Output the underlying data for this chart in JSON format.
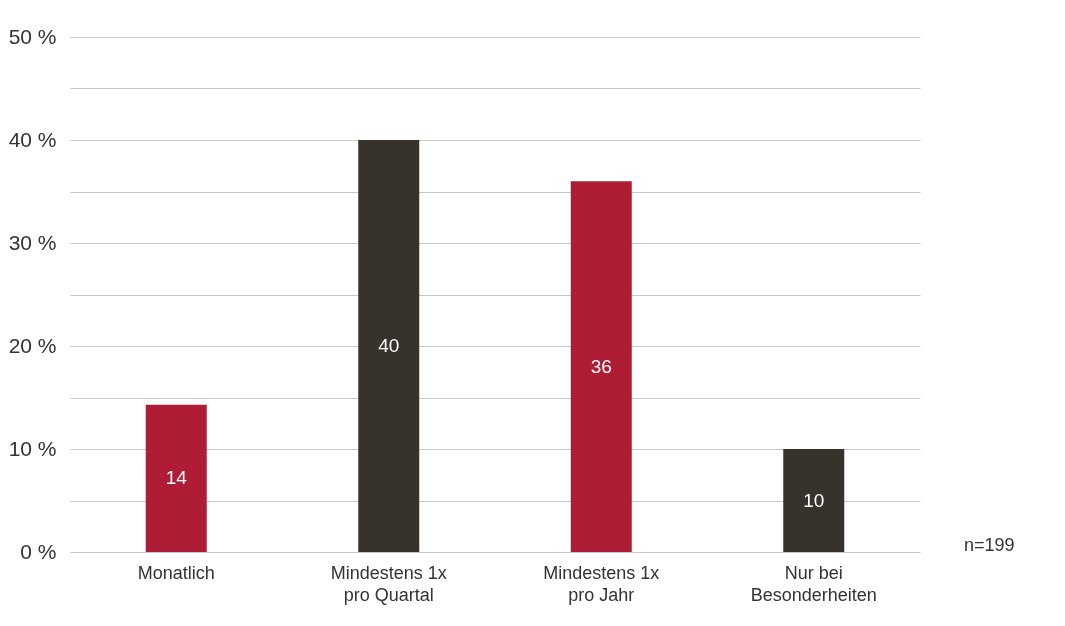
{
  "chart_data": {
    "type": "bar",
    "categories": [
      "Monatlich",
      "Mindestens 1x pro Quartal",
      "Mindestens 1x pro Jahr",
      "Nur bei Besonderheiten"
    ],
    "values": [
      14.3,
      40,
      36,
      10
    ],
    "colors": [
      "#ae1c35",
      "#38322c",
      "#ae1c35",
      "#38322c"
    ],
    "value_labels": [
      "14",
      "40",
      "36",
      "10"
    ],
    "ylim": [
      0,
      50
    ],
    "yticks": [
      {
        "value": 0,
        "label": "0 %"
      },
      {
        "value": 5,
        "label": null
      },
      {
        "value": 10,
        "label": "10 %"
      },
      {
        "value": 15,
        "label": null
      },
      {
        "value": 20,
        "label": "20 %"
      },
      {
        "value": 25,
        "label": null
      },
      {
        "value": 30,
        "label": "30 %"
      },
      {
        "value": 35,
        "label": null
      },
      {
        "value": 40,
        "label": "40 %"
      },
      {
        "value": 45,
        "label": null
      },
      {
        "value": 50,
        "label": "50 %"
      }
    ],
    "grid": true,
    "annotations": [
      "n=199"
    ]
  }
}
